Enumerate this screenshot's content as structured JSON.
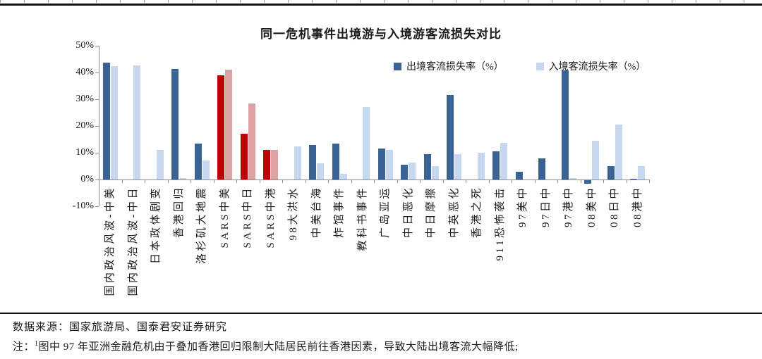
{
  "chart_data": {
    "type": "bar",
    "title": "同一危机事件出境游与入境游客流损失对比",
    "categories": [
      "国内政治风波-中美",
      "国内政治风波-中日",
      "日本政体剧变",
      "香港回归",
      "洛杉矶大地震",
      "SARS中美",
      "SARS中日",
      "SARS中港",
      "98大洪水",
      "中美台海",
      "炸馆事件",
      "教科书事件",
      "广岛亚运",
      "中日恶化",
      "中日摩擦",
      "中英恶化",
      "香港之死",
      "911恐怖袭击",
      "97美中",
      "97日中",
      "97港中",
      "08美中",
      "08日中",
      "08港中"
    ],
    "series": [
      {
        "name": "出境客流损失率（%）",
        "color": "#3A6294",
        "highlight_color": "#C00000",
        "values": [
          43.6,
          0,
          0,
          41.2,
          13.5,
          39.0,
          17.2,
          11.0,
          0,
          13.0,
          13.5,
          0,
          11.5,
          5.4,
          9.4,
          31.5,
          0,
          10.4,
          2.9,
          7.8,
          40.8,
          -1.2,
          5.0,
          0.3
        ]
      },
      {
        "name": "入境客流损失率（%）",
        "color": "#C6D8F0",
        "highlight_color": "#DCA3A4",
        "values": [
          42.3,
          42.7,
          11.0,
          0.4,
          7.0,
          41.1,
          28.4,
          11.0,
          12.4,
          6.1,
          2.1,
          27.0,
          11.0,
          6.2,
          4.9,
          9.4,
          9.9,
          13.6,
          0,
          0,
          0.5,
          14.5,
          20.4,
          5.0
        ]
      }
    ],
    "highlight_category_indexes": [
      5,
      6,
      7
    ],
    "ylim": [
      -10,
      50
    ],
    "ytick_labels": [
      "50%",
      "40%",
      "30%",
      "20%",
      "10%",
      "0%",
      "-10%"
    ],
    "grid": false,
    "legend_position": "top-right"
  },
  "footer": {
    "source": "数据来源：国家旅游局、国泰君安证券研究",
    "note_prefix": "注：",
    "note_superscript": "1",
    "note_text": "图中 97 年亚洲金融危机由于叠加香港回归限制大陆居民前往香港因素，导致大陆出境客流大幅降低;"
  }
}
